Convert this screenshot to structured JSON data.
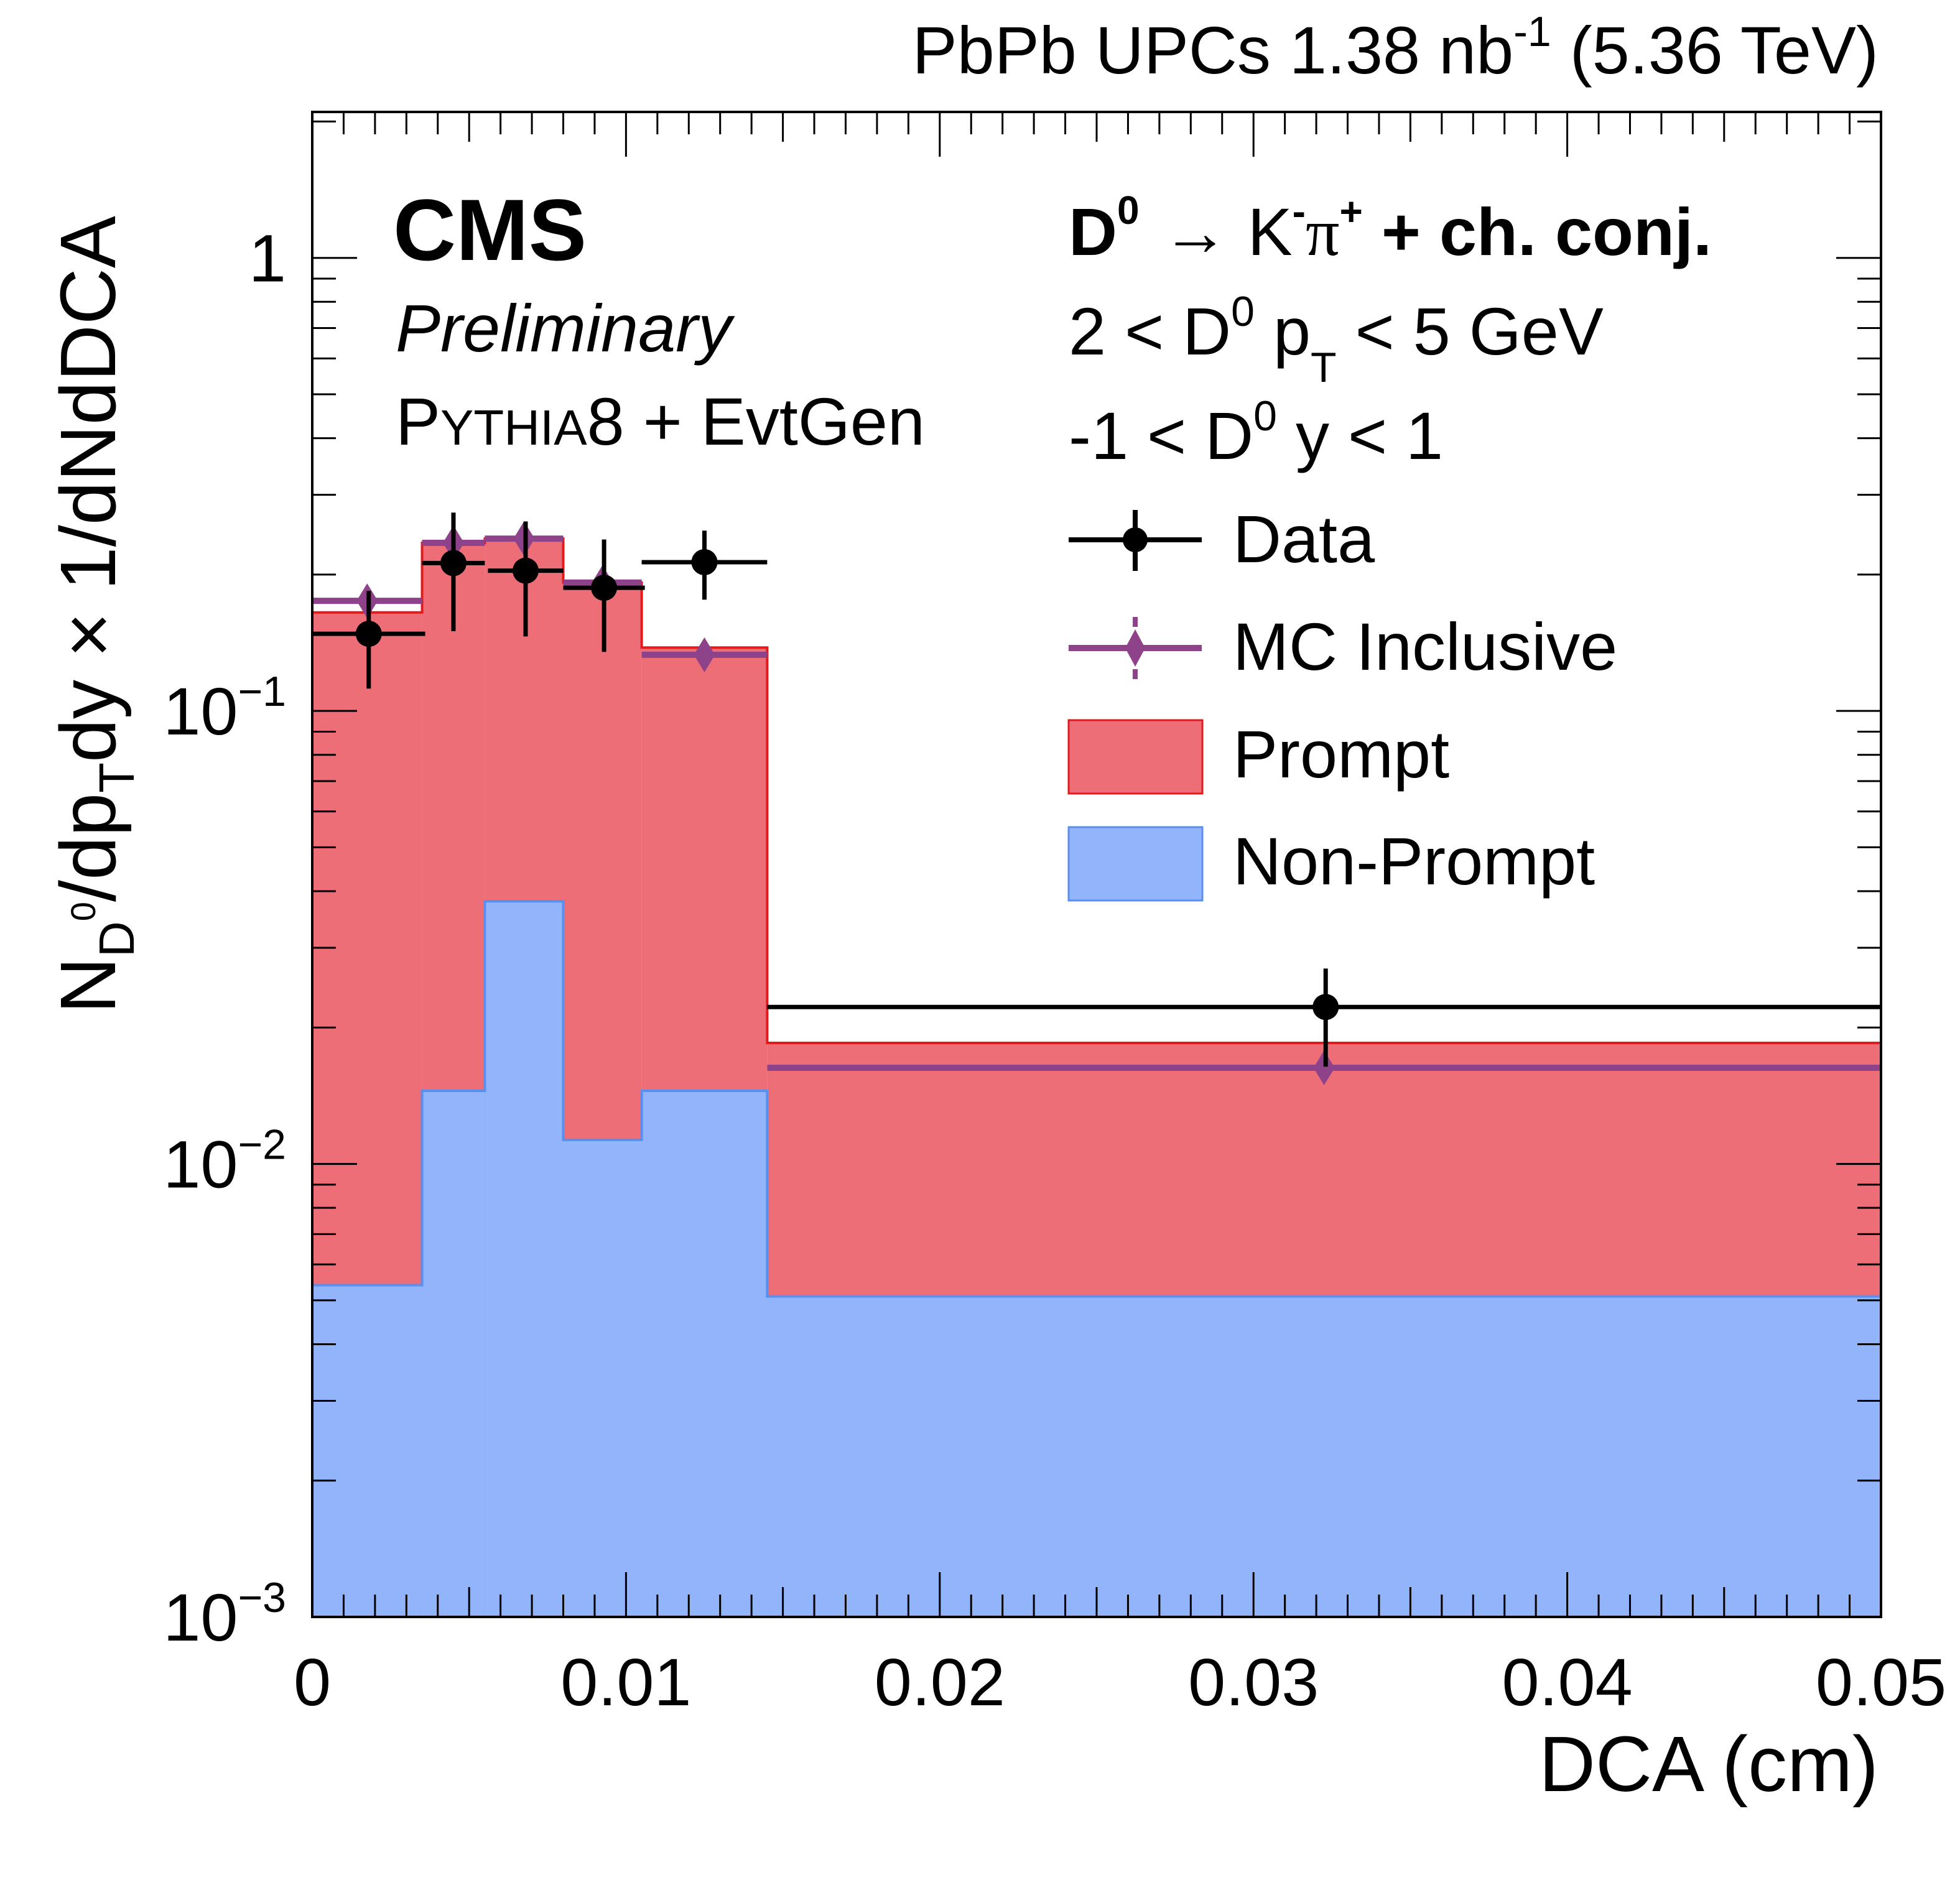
{
  "colors": {
    "prompt_fill": "#ee6e78",
    "prompt_line": "#e31a1c",
    "nonprompt_fill": "#91b4fb",
    "nonprompt_line": "#5a8ff0",
    "mc": "#8e4289",
    "data": "#000000",
    "frame": "#000000"
  },
  "header": {
    "right": {
      "main": "PbPb UPCs 1.38 nb",
      "sup": "-1",
      "tail": " (5.36 TeV)"
    }
  },
  "cms": {
    "label": "CMS",
    "sublabel": "Preliminary"
  },
  "generator": {
    "p": "P",
    "ythia": "YTHIA",
    "rest": "8 + EvtGen"
  },
  "decay": {
    "d": "D",
    "d_sup": "0",
    "arrow": "→ K",
    "k_sup": "-",
    "pi": "π",
    "pi_sup": "+",
    "tail": " + ch. conj."
  },
  "pt_cut": {
    "a": "2 < D",
    "sup": "0",
    "b": " p",
    "sub": "T",
    "c": " < 5 GeV"
  },
  "y_cut": {
    "a": "-1 < D",
    "sup": "0",
    "c": " y < 1"
  },
  "legend": {
    "data": "Data",
    "mc": "MC Inclusive",
    "prompt": "Prompt",
    "nonprompt": "Non-Prompt"
  },
  "axes": {
    "x_label": "DCA (cm)",
    "y_label": {
      "n": "N",
      "sub1": "D",
      "sup1": "0",
      "mid1": "/dp",
      "sub2": "T",
      "mid2": "dy × 1/dNdDCA"
    }
  },
  "chart_data": {
    "type": "histogram",
    "x_scale": "linear",
    "y_scale": "log",
    "xlim": [
      0,
      0.05
    ],
    "ylim": [
      0.001,
      2.1
    ],
    "x_ticks": [
      {
        "v": 0,
        "label": "0"
      },
      {
        "v": 0.01,
        "label": "0.01"
      },
      {
        "v": 0.02,
        "label": "0.02"
      },
      {
        "v": 0.03,
        "label": "0.03"
      },
      {
        "v": 0.04,
        "label": "0.04"
      },
      {
        "v": 0.05,
        "label": "0.05"
      }
    ],
    "y_ticks": [
      {
        "v": 1,
        "base": "1",
        "exp": ""
      },
      {
        "v": 0.1,
        "base": "10",
        "exp": "−1"
      },
      {
        "v": 0.01,
        "base": "10",
        "exp": "−2"
      },
      {
        "v": 0.001,
        "base": "10",
        "exp": "−3"
      }
    ],
    "bin_edges": [
      0,
      0.0035,
      0.0055,
      0.008,
      0.0105,
      0.0145,
      0.05
    ],
    "series": [
      {
        "name": "Prompt (stacked total)",
        "values": [
          0.165,
          0.235,
          0.24,
          0.192,
          0.138,
          0.0185
        ]
      },
      {
        "name": "Non-Prompt",
        "values": [
          0.0054,
          0.0145,
          0.038,
          0.0113,
          0.0145,
          0.0051
        ]
      },
      {
        "name": "MC Inclusive",
        "values": [
          0.175,
          0.235,
          0.24,
          0.192,
          0.133,
          0.0163
        ]
      },
      {
        "name": "Data",
        "x": [
          0.0018,
          0.0045,
          0.0068,
          0.0093,
          0.0125,
          0.0323
        ],
        "x_err_lo": [
          0.0018,
          0.001,
          0.0012,
          0.0013,
          0.002,
          0.0178
        ],
        "x_err_hi": [
          0.0018,
          0.001,
          0.0012,
          0.0013,
          0.002,
          0.0177
        ],
        "y": [
          0.148,
          0.212,
          0.204,
          0.187,
          0.213,
          0.0222
        ],
        "y_err_lo": [
          0.036,
          0.062,
          0.058,
          0.052,
          0.037,
          0.0058
        ],
        "y_err_hi": [
          0.036,
          0.062,
          0.058,
          0.052,
          0.037,
          0.0048
        ]
      }
    ]
  }
}
